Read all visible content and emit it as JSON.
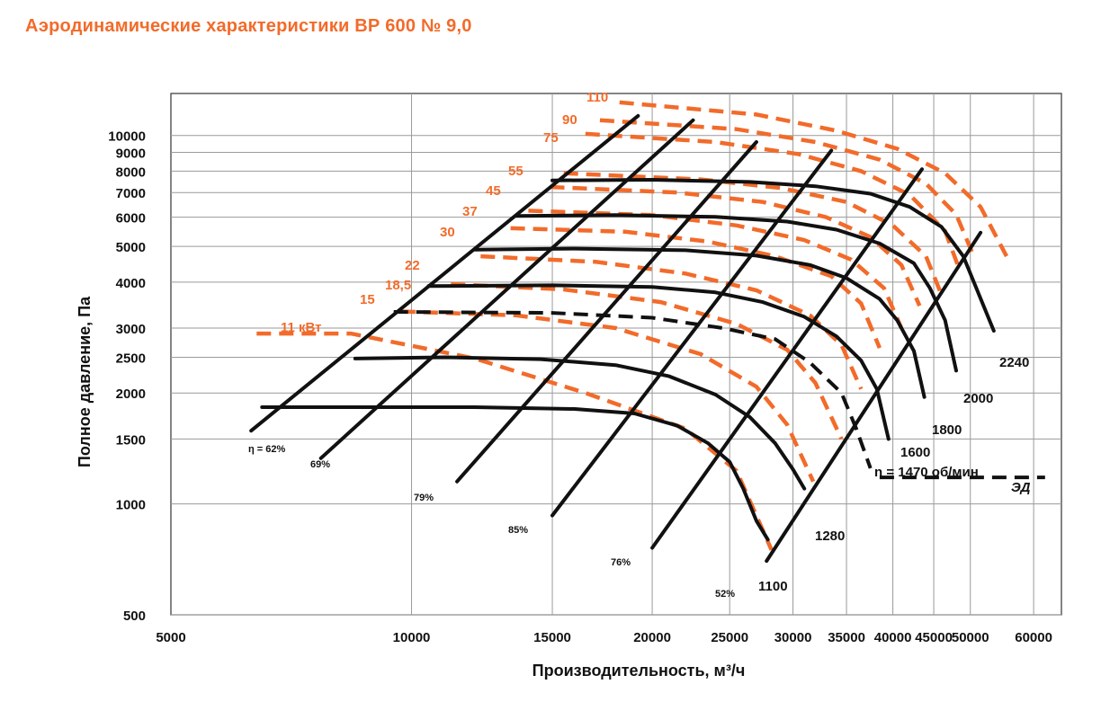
{
  "title": "Аэродинамические характеристики ВР 600 № 9,0",
  "colors": {
    "title": "#f26b2a",
    "power": "#f26b2a",
    "curves": "#111111",
    "grid": "#9a9a9a"
  },
  "chart_data": {
    "type": "line",
    "x_scale": "log",
    "y_scale": "log",
    "xlabel": "Производительность, м³/ч",
    "ylabel": "Полное давление, Па",
    "xlim": [
      5000,
      65000
    ],
    "ylim": [
      500,
      13000
    ],
    "grid": true,
    "x_ticks": [
      5000,
      10000,
      15000,
      20000,
      25000,
      30000,
      35000,
      40000,
      45000,
      50000,
      60000
    ],
    "y_ticks": [
      500,
      1000,
      1500,
      2000,
      2500,
      3000,
      4000,
      5000,
      6000,
      7000,
      8000,
      9000,
      10000
    ],
    "speed_curves": [
      {
        "name": "1100",
        "points": [
          [
            6500,
            1830
          ],
          [
            12000,
            1830
          ],
          [
            16000,
            1810
          ],
          [
            19000,
            1760
          ],
          [
            21500,
            1630
          ],
          [
            23500,
            1460
          ],
          [
            25000,
            1300
          ],
          [
            26000,
            1100
          ],
          [
            27000,
            900
          ],
          [
            27900,
            800
          ]
        ]
      },
      {
        "name": "1280",
        "points": [
          [
            8500,
            2480
          ],
          [
            11000,
            2500
          ],
          [
            14500,
            2470
          ],
          [
            18000,
            2380
          ],
          [
            21000,
            2220
          ],
          [
            24000,
            1980
          ],
          [
            26500,
            1720
          ],
          [
            28500,
            1460
          ],
          [
            30000,
            1240
          ],
          [
            31000,
            1100
          ]
        ]
      },
      {
        "name": "1600",
        "points": [
          [
            10500,
            3900
          ],
          [
            15000,
            3920
          ],
          [
            20000,
            3880
          ],
          [
            24000,
            3750
          ],
          [
            27500,
            3530
          ],
          [
            31000,
            3220
          ],
          [
            34000,
            2850
          ],
          [
            36500,
            2450
          ],
          [
            38200,
            2050
          ],
          [
            39500,
            1500
          ]
        ]
      },
      {
        "name": "1800",
        "points": [
          [
            12000,
            4900
          ],
          [
            16000,
            4930
          ],
          [
            22000,
            4880
          ],
          [
            27000,
            4720
          ],
          [
            31500,
            4450
          ],
          [
            35000,
            4100
          ],
          [
            38500,
            3600
          ],
          [
            40500,
            3150
          ],
          [
            42500,
            2600
          ],
          [
            43800,
            1950
          ]
        ]
      },
      {
        "name": "2000",
        "points": [
          [
            13500,
            6050
          ],
          [
            18000,
            6080
          ],
          [
            24000,
            6010
          ],
          [
            29500,
            5840
          ],
          [
            34000,
            5550
          ],
          [
            38500,
            5090
          ],
          [
            42500,
            4500
          ],
          [
            44500,
            3850
          ],
          [
            46500,
            3150
          ],
          [
            48000,
            2300
          ]
        ]
      },
      {
        "name": "2240",
        "points": [
          [
            15000,
            7550
          ],
          [
            20000,
            7580
          ],
          [
            26500,
            7480
          ],
          [
            32000,
            7280
          ],
          [
            37500,
            6950
          ],
          [
            42000,
            6400
          ],
          [
            46000,
            5650
          ],
          [
            49000,
            4700
          ],
          [
            51000,
            3800
          ],
          [
            53500,
            2950
          ]
        ]
      }
    ],
    "efficiency_lines": [
      {
        "name": "η = 62%",
        "points": [
          [
            6300,
            1580
          ],
          [
            19200,
            11300
          ]
        ]
      },
      {
        "name": "69%",
        "points": [
          [
            7700,
            1330
          ],
          [
            22500,
            11000
          ]
        ]
      },
      {
        "name": "79%",
        "points": [
          [
            11400,
            1150
          ],
          [
            27000,
            9600
          ]
        ]
      },
      {
        "name": "85%",
        "points": [
          [
            15000,
            930
          ],
          [
            33500,
            9100
          ]
        ]
      },
      {
        "name": "76%",
        "points": [
          [
            20000,
            760
          ],
          [
            43500,
            8100
          ]
        ]
      },
      {
        "name": "52%",
        "points": [
          [
            27800,
            700
          ],
          [
            51500,
            5450
          ]
        ]
      }
    ],
    "power_curves": [
      {
        "name": "11 кВт",
        "points": [
          [
            6400,
            2900
          ],
          [
            8400,
            2900
          ],
          [
            12000,
            2480
          ],
          [
            16500,
            2000
          ],
          [
            22000,
            1600
          ],
          [
            25500,
            1230
          ],
          [
            28200,
            750
          ]
        ]
      },
      {
        "name": "15",
        "points": [
          [
            9700,
            3330
          ],
          [
            13500,
            3250
          ],
          [
            18000,
            3000
          ],
          [
            23000,
            2550
          ],
          [
            27000,
            2080
          ],
          [
            29500,
            1640
          ],
          [
            31800,
            1150
          ]
        ]
      },
      {
        "name": "18,5",
        "points": [
          [
            11200,
            3950
          ],
          [
            15500,
            3820
          ],
          [
            20500,
            3530
          ],
          [
            25500,
            3080
          ],
          [
            29500,
            2620
          ],
          [
            32000,
            2130
          ],
          [
            34500,
            1500
          ]
        ]
      },
      {
        "name": "22",
        "points": [
          [
            12200,
            4700
          ],
          [
            17000,
            4540
          ],
          [
            22000,
            4220
          ],
          [
            27000,
            3800
          ],
          [
            31500,
            3250
          ],
          [
            34500,
            2700
          ],
          [
            36500,
            2050
          ]
        ]
      },
      {
        "name": "30",
        "points": [
          [
            13300,
            5600
          ],
          [
            18500,
            5480
          ],
          [
            23500,
            5150
          ],
          [
            28500,
            4700
          ],
          [
            33500,
            4150
          ],
          [
            36500,
            3500
          ],
          [
            38500,
            2650
          ]
        ]
      },
      {
        "name": "37",
        "points": [
          [
            14000,
            6250
          ],
          [
            20000,
            6080
          ],
          [
            25500,
            5700
          ],
          [
            31000,
            5200
          ],
          [
            35500,
            4600
          ],
          [
            39000,
            3850
          ],
          [
            41000,
            3000
          ]
        ]
      },
      {
        "name": "45",
        "points": [
          [
            14900,
            7250
          ],
          [
            21500,
            7000
          ],
          [
            27500,
            6600
          ],
          [
            33000,
            6000
          ],
          [
            37500,
            5300
          ],
          [
            41000,
            4450
          ],
          [
            43200,
            3450
          ]
        ]
      },
      {
        "name": "55",
        "points": [
          [
            15500,
            7900
          ],
          [
            23000,
            7600
          ],
          [
            29000,
            7200
          ],
          [
            35000,
            6600
          ],
          [
            40000,
            5700
          ],
          [
            44000,
            4700
          ],
          [
            46000,
            3700
          ]
        ]
      },
      {
        "name": "75",
        "points": [
          [
            16500,
            10100
          ],
          [
            24000,
            9600
          ],
          [
            30500,
            8900
          ],
          [
            36500,
            8000
          ],
          [
            42000,
            6900
          ],
          [
            46500,
            5500
          ],
          [
            48500,
            4300
          ]
        ]
      },
      {
        "name": "90",
        "points": [
          [
            17200,
            11000
          ],
          [
            25500,
            10400
          ],
          [
            32000,
            9600
          ],
          [
            38500,
            8600
          ],
          [
            44000,
            7400
          ],
          [
            48000,
            6100
          ],
          [
            50500,
            4700
          ]
        ]
      },
      {
        "name": "110",
        "points": [
          [
            18200,
            12300
          ],
          [
            27000,
            11400
          ],
          [
            34000,
            10300
          ],
          [
            40500,
            9200
          ],
          [
            46500,
            7900
          ],
          [
            51500,
            6400
          ],
          [
            55500,
            4700
          ]
        ]
      }
    ],
    "drive_line": {
      "name": "ЭД",
      "label": "n = 1470 об/мин",
      "points": [
        [
          9500,
          3320
        ],
        [
          15000,
          3300
        ],
        [
          20000,
          3200
        ],
        [
          24500,
          3000
        ],
        [
          28500,
          2800
        ],
        [
          31500,
          2420
        ],
        [
          34500,
          2000
        ],
        [
          36000,
          1600
        ],
        [
          37500,
          1250
        ]
      ],
      "leader": [
        [
          38500,
          1180
        ],
        [
          62000,
          1180
        ]
      ]
    }
  },
  "labels": {
    "power": [
      "110",
      "90",
      "75",
      "55",
      "45",
      "37",
      "30",
      "22",
      "18,5",
      "15",
      "11 кВт"
    ],
    "speeds": [
      "1100",
      "1280",
      "1600",
      "1800",
      "2000",
      "2240"
    ],
    "efficiency": [
      "η = 62%",
      "69%",
      "79%",
      "85%",
      "76%",
      "52%"
    ],
    "drive": "n = 1470 об/мин",
    "drive_tag": "ЭД"
  }
}
